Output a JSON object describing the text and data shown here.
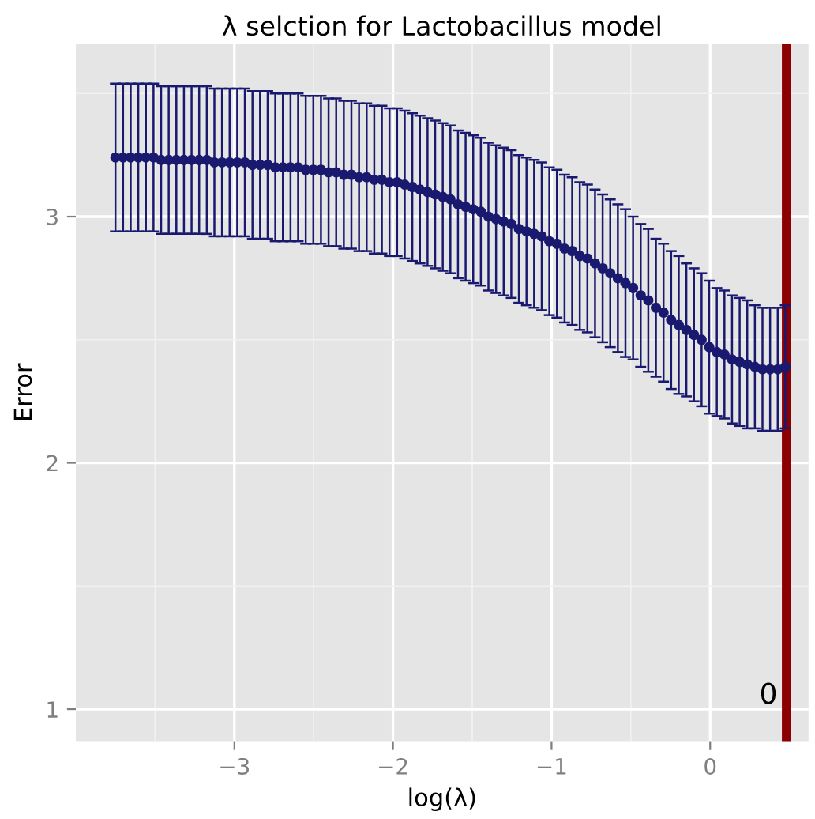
{
  "chart_data": {
    "type": "scatter",
    "title": "λ selction for Lactobacillus model",
    "xlabel": "log(λ)",
    "ylabel": "Error",
    "x": [
      -3.75,
      -3.702,
      -3.654,
      -3.606,
      -3.558,
      -3.51,
      -3.462,
      -3.414,
      -3.366,
      -3.318,
      -3.27,
      -3.222,
      -3.174,
      -3.126,
      -3.078,
      -3.03,
      -2.982,
      -2.934,
      -2.886,
      -2.838,
      -2.79,
      -2.742,
      -2.694,
      -2.646,
      -2.598,
      -2.55,
      -2.502,
      -2.454,
      -2.406,
      -2.358,
      -2.31,
      -2.262,
      -2.214,
      -2.166,
      -2.118,
      -2.07,
      -2.022,
      -1.974,
      -1.926,
      -1.878,
      -1.83,
      -1.782,
      -1.734,
      -1.686,
      -1.638,
      -1.59,
      -1.542,
      -1.494,
      -1.446,
      -1.398,
      -1.35,
      -1.302,
      -1.254,
      -1.206,
      -1.158,
      -1.11,
      -1.062,
      -1.014,
      -0.966,
      -0.918,
      -0.87,
      -0.822,
      -0.774,
      -0.726,
      -0.678,
      -0.63,
      -0.582,
      -0.534,
      -0.486,
      -0.438,
      -0.39,
      -0.342,
      -0.294,
      -0.246,
      -0.198,
      -0.15,
      -0.102,
      -0.054,
      -0.006,
      0.042,
      0.09,
      0.138,
      0.186,
      0.234,
      0.282,
      0.33,
      0.378,
      0.426,
      0.474
    ],
    "series": [
      {
        "color": "#191970",
        "values": [
          3.24,
          3.24,
          3.24,
          3.24,
          3.24,
          3.24,
          3.23,
          3.23,
          3.23,
          3.23,
          3.23,
          3.23,
          3.23,
          3.22,
          3.22,
          3.22,
          3.22,
          3.22,
          3.21,
          3.21,
          3.21,
          3.2,
          3.2,
          3.2,
          3.2,
          3.19,
          3.19,
          3.19,
          3.18,
          3.18,
          3.17,
          3.17,
          3.16,
          3.16,
          3.15,
          3.15,
          3.14,
          3.14,
          3.13,
          3.12,
          3.11,
          3.1,
          3.09,
          3.08,
          3.07,
          3.05,
          3.04,
          3.03,
          3.02,
          3.0,
          2.99,
          2.98,
          2.97,
          2.95,
          2.94,
          2.93,
          2.92,
          2.9,
          2.89,
          2.87,
          2.86,
          2.84,
          2.83,
          2.81,
          2.79,
          2.77,
          2.75,
          2.73,
          2.71,
          2.68,
          2.66,
          2.63,
          2.61,
          2.58,
          2.56,
          2.54,
          2.52,
          2.5,
          2.47,
          2.45,
          2.44,
          2.42,
          2.41,
          2.4,
          2.39,
          2.38,
          2.38,
          2.38,
          2.39
        ],
        "errors": [
          0.3,
          0.3,
          0.3,
          0.3,
          0.3,
          0.3,
          0.3,
          0.3,
          0.3,
          0.3,
          0.3,
          0.3,
          0.3,
          0.3,
          0.3,
          0.3,
          0.3,
          0.3,
          0.3,
          0.3,
          0.3,
          0.3,
          0.3,
          0.3,
          0.3,
          0.3,
          0.3,
          0.3,
          0.3,
          0.3,
          0.3,
          0.3,
          0.3,
          0.3,
          0.3,
          0.3,
          0.3,
          0.3,
          0.3,
          0.3,
          0.3,
          0.3,
          0.3,
          0.3,
          0.3,
          0.3,
          0.3,
          0.3,
          0.3,
          0.3,
          0.3,
          0.3,
          0.3,
          0.3,
          0.3,
          0.3,
          0.3,
          0.3,
          0.3,
          0.3,
          0.3,
          0.3,
          0.3,
          0.3,
          0.3,
          0.3,
          0.3,
          0.3,
          0.29,
          0.29,
          0.29,
          0.28,
          0.28,
          0.28,
          0.28,
          0.27,
          0.27,
          0.27,
          0.27,
          0.26,
          0.26,
          0.26,
          0.26,
          0.26,
          0.25,
          0.25,
          0.25,
          0.25,
          0.25
        ]
      }
    ],
    "marker": "circle",
    "ref_lines": [
      {
        "axis": "x",
        "value": 0.48,
        "label": "0",
        "color": "#8b0000"
      }
    ],
    "xlim": [
      -4.0,
      0.62
    ],
    "ylim": [
      0.87,
      3.7
    ],
    "xticks": [
      {
        "value": -3,
        "label": "−3"
      },
      {
        "value": -2,
        "label": "−2"
      },
      {
        "value": -1,
        "label": "−1"
      },
      0
    ],
    "yticks": [
      1,
      2,
      3
    ],
    "grid": true
  }
}
